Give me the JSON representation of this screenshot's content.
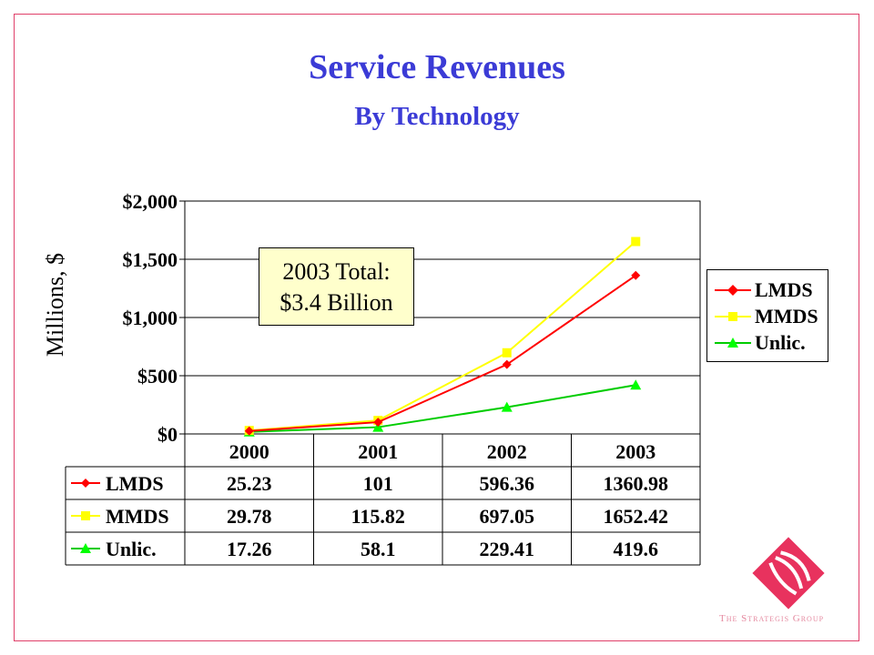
{
  "title": "Service Revenues",
  "subtitle": "By Technology",
  "callout": {
    "line1": "2003 Total:",
    "line2": "$3.4 Billion"
  },
  "logo_text": "The Strategis Group",
  "chart_data": {
    "type": "line",
    "title": "Service Revenues",
    "subtitle": "By Technology",
    "xlabel": "",
    "ylabel": "Millions, $",
    "categories": [
      "2000",
      "2001",
      "2002",
      "2003"
    ],
    "ylim": [
      0,
      2000
    ],
    "yticks": [
      0,
      500,
      1000,
      1500,
      2000
    ],
    "ytick_labels": [
      "$0",
      "$500",
      "$1,000",
      "$1,500",
      "$2,000"
    ],
    "grid": true,
    "legend_position": "right",
    "series": [
      {
        "name": "LMDS",
        "color": "#ff0000",
        "marker": "diamond",
        "marker_color": "#ff0000",
        "values": [
          25.23,
          101,
          596.36,
          1360.98
        ],
        "labels": [
          "25.23",
          "101",
          "596.36",
          "1360.98"
        ]
      },
      {
        "name": "MMDS",
        "color": "#ffff00",
        "marker": "square",
        "marker_color": "#ffff00",
        "values": [
          29.78,
          115.82,
          697.05,
          1652.42
        ],
        "labels": [
          "29.78",
          "115.82",
          "697.05",
          "1652.42"
        ]
      },
      {
        "name": "Unlic.",
        "color": "#00cc00",
        "marker": "triangle",
        "marker_color": "#00ff00",
        "values": [
          17.26,
          58.1,
          229.41,
          419.6
        ],
        "labels": [
          "17.26",
          "58.1",
          "229.41",
          "419.6"
        ]
      }
    ]
  }
}
